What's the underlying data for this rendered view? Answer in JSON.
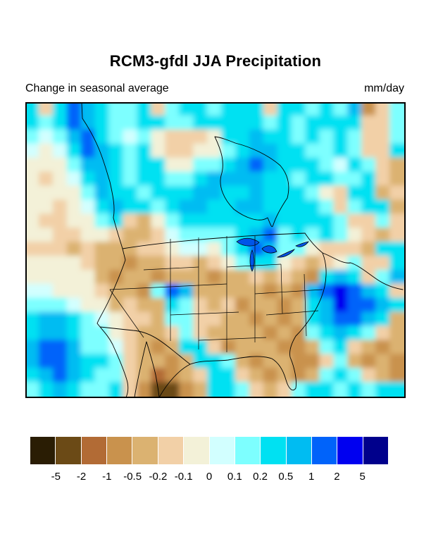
{
  "figure": {
    "title": "RCM3-gfdl JJA Precipitation",
    "subtitle_left": "Change in seasonal average",
    "units_label": "mm/day"
  },
  "chart_data": {
    "type": "heatmap",
    "title": "RCM3-gfdl JJA Precipitation",
    "subtitle": "Change in seasonal average",
    "units": "mm/day",
    "region": "North America (filled contour map with coastlines, US state and national borders)",
    "legend_position": "bottom",
    "colorbar": {
      "orientation": "horizontal",
      "tick_labels": [
        "-5",
        "-2",
        "-1",
        "-0.5",
        "-0.2",
        "-0.1",
        "0",
        "0.1",
        "0.2",
        "0.5",
        "1",
        "2",
        "5"
      ],
      "colors": [
        "#2a1d04",
        "#6b4a16",
        "#b26b35",
        "#c9924d",
        "#dbb271",
        "#f2d0a7",
        "#f3f1d8",
        "#d2ffff",
        "#7dffff",
        "#00e1f2",
        "#00bcf2",
        "#0063fa",
        "#0000f0",
        "#00008c"
      ]
    },
    "grid": {
      "comment_levels": "each char is a color-level index into colorbar.colors via level_chars; coarse 27x21 raster of the contour field, row 0 = map top",
      "cols": 27,
      "rows": 21,
      "level_chars": "0123456789ABCD",
      "cells": [
        "959BA988958998999599898A358",
        "989BA9889988999998989999558",
        "878AB98786555699A9989898558",
        "7679BA9896556689AA998898559",
        "6668AA989966889ABA999879854",
        "65679A9899889AAAA9989988954",
        "66668A998999AA99A9998659945",
        "665679A9989AA99AA9999858994",
        "65566895468999999A999985585",
        "6655665445788889AB898986545",
        "5554544455677689BA886555499",
        "666654434455456899654568559",
        "6666643443444344545439A958A",
        "7766654438BA44444343ABCBA95",
        "888766454498545344349ACBBA9",
        "9AA987655488554434349ABBA94",
        "9AA9886544585444434389A9854",
        "ABBA88754349953444334895434",
        "ABBA99854434998434433584343",
        "9ABA98854234599543434898543",
        "89A988953113499854589989899"
      ]
    }
  }
}
